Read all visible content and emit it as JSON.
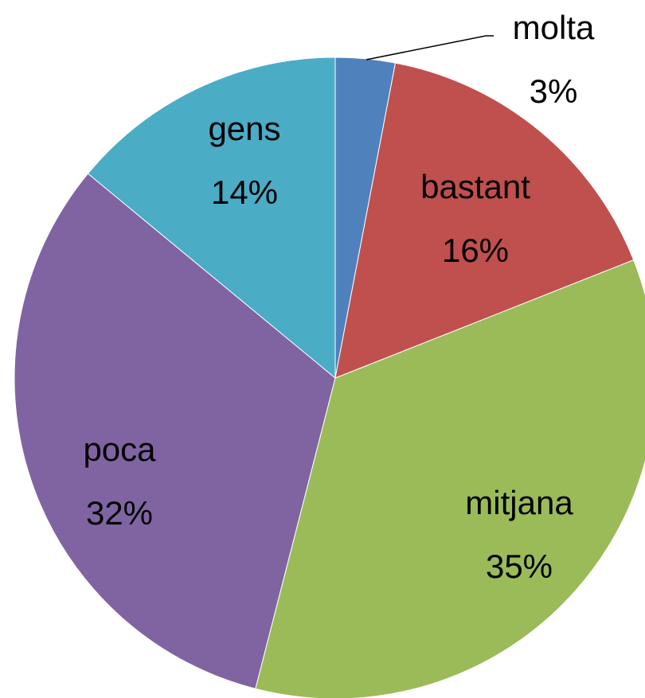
{
  "chart_data": {
    "type": "pie",
    "categories": [
      "molta",
      "bastant",
      "mitjana",
      "poca",
      "gens"
    ],
    "values": [
      3,
      16,
      35,
      32,
      14
    ],
    "value_labels": [
      "3%",
      "16%",
      "35%",
      "32%",
      "14%"
    ],
    "colors": [
      "#4f81bd",
      "#c0504d",
      "#9bbb59",
      "#8064a2",
      "#4bacc6"
    ]
  }
}
